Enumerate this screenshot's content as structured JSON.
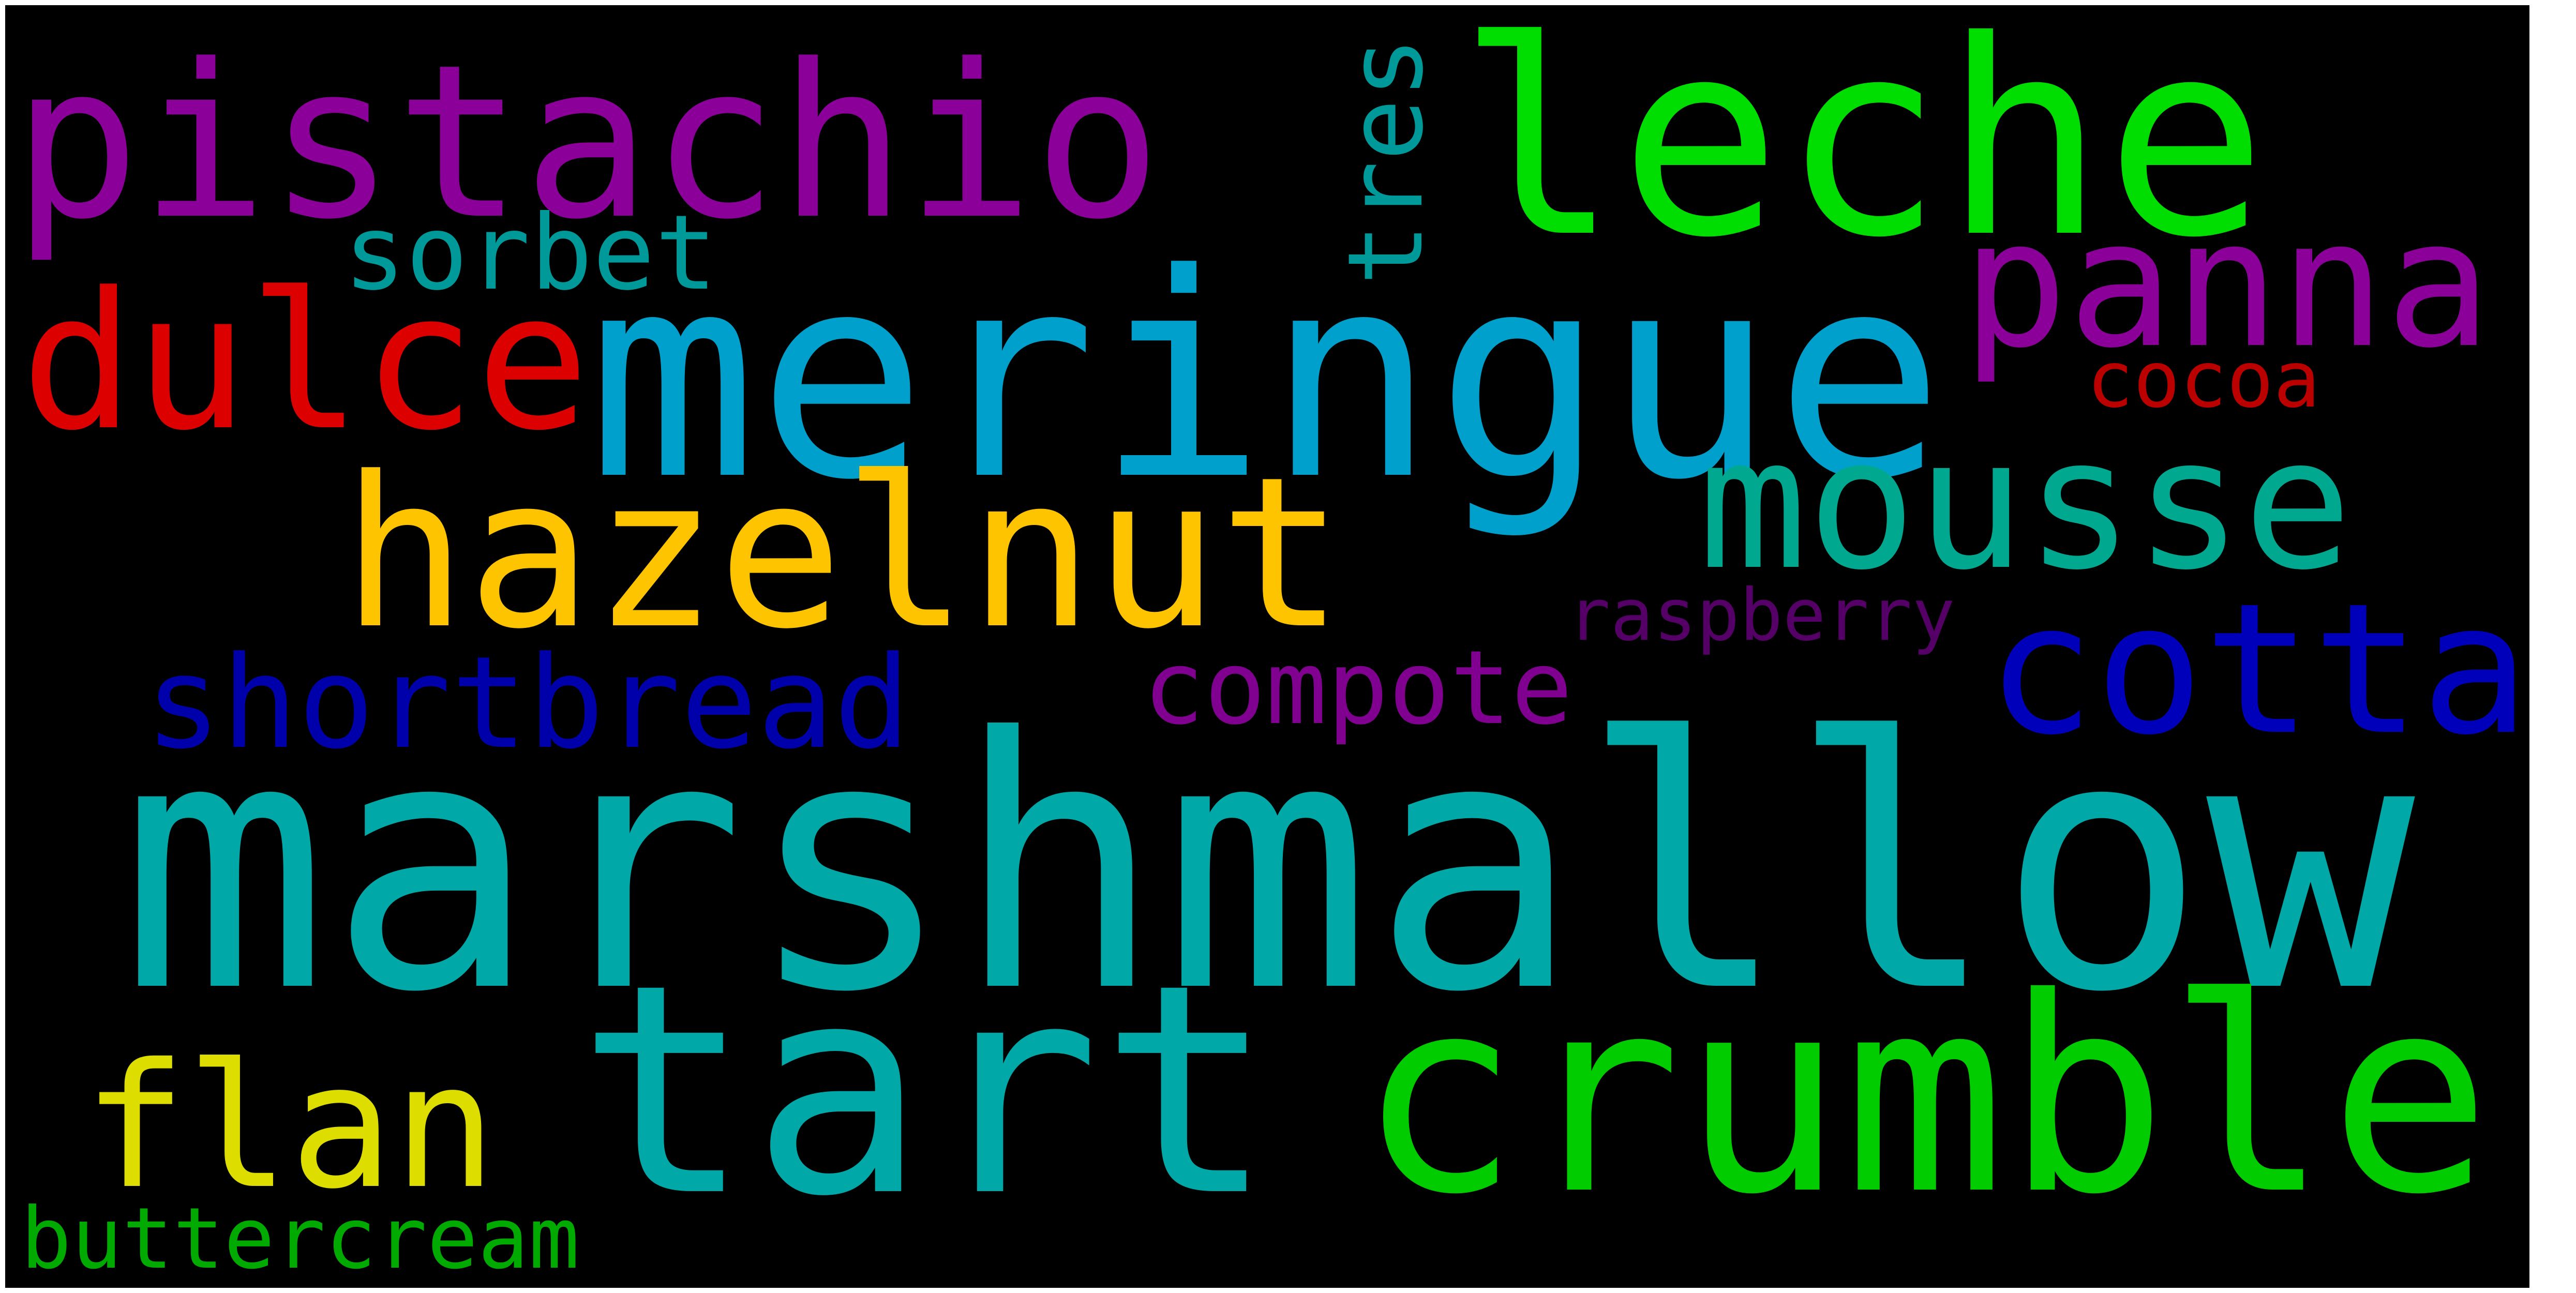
{
  "word_cloud": {
    "background": "#000000",
    "words": [
      {
        "text": "marshmallow",
        "color": "#00a8a8"
      },
      {
        "text": "meringue",
        "color": "#00a0cc"
      },
      {
        "text": "leche",
        "color": "#00dd00"
      },
      {
        "text": "pistachio",
        "color": "#8b0099"
      },
      {
        "text": "crumble",
        "color": "#00cc00"
      },
      {
        "text": "tart",
        "color": "#00a8a8"
      },
      {
        "text": "hazelnut",
        "color": "#ffc400"
      },
      {
        "text": "mousse",
        "color": "#00a890"
      },
      {
        "text": "dulce",
        "color": "#dd0000"
      },
      {
        "text": "panna",
        "color": "#8b0099"
      },
      {
        "text": "cotta",
        "color": "#0000bb"
      },
      {
        "text": "flan",
        "color": "#dddd00"
      },
      {
        "text": "shortbread",
        "color": "#0000aa"
      },
      {
        "text": "compote",
        "color": "#800090"
      },
      {
        "text": "sorbet",
        "color": "#009999"
      },
      {
        "text": "buttercream",
        "color": "#00aa00"
      },
      {
        "text": "cocoa",
        "color": "#bb0000"
      },
      {
        "text": "raspberry",
        "color": "#550066"
      },
      {
        "text": "tres",
        "color": "#009999"
      }
    ]
  }
}
